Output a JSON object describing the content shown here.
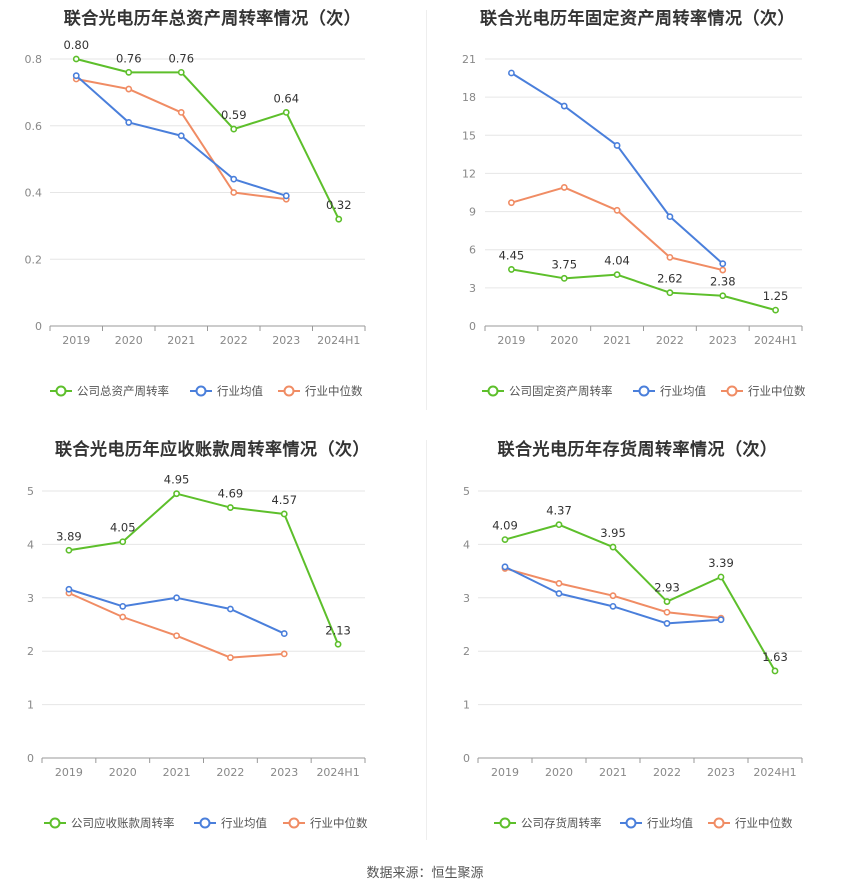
{
  "source": "数据来源：恒生聚源",
  "colors": {
    "company": "#5dbf2b",
    "avg": "#4a7fdb",
    "median": "#f08c64",
    "grid": "#e6e6e6",
    "axis": "#999999",
    "tick": "#888888"
  },
  "chart_data": [
    {
      "type": "line",
      "title": "联合光电历年总资产周转率情况（次）",
      "categories": [
        "2019",
        "2020",
        "2021",
        "2022",
        "2023",
        "2024H1"
      ],
      "ylim": [
        0,
        0.8
      ],
      "yticks": [
        "0",
        "0.2",
        "0.4",
        "0.6",
        "0.8"
      ],
      "series": [
        {
          "name": "公司总资产周转率",
          "values": [
            0.8,
            0.76,
            0.76,
            0.59,
            0.64,
            0.32
          ],
          "labels": [
            "0.80",
            "0.76",
            "0.76",
            "0.59",
            "0.64",
            "0.32"
          ]
        },
        {
          "name": "行业均值",
          "values": [
            0.75,
            0.61,
            0.57,
            0.44,
            0.39,
            null
          ]
        },
        {
          "name": "行业中位数",
          "values": [
            0.74,
            0.71,
            0.64,
            0.4,
            0.38,
            null
          ]
        }
      ]
    },
    {
      "type": "line",
      "title": "联合光电历年固定资产周转率情况（次）",
      "categories": [
        "2019",
        "2020",
        "2021",
        "2022",
        "2023",
        "2024H1"
      ],
      "ylim": [
        0,
        21
      ],
      "yticks": [
        "0",
        "3",
        "6",
        "9",
        "12",
        "15",
        "18",
        "21"
      ],
      "series": [
        {
          "name": "公司固定资产周转率",
          "values": [
            4.45,
            3.75,
            4.04,
            2.62,
            2.38,
            1.25
          ],
          "labels": [
            "4.45",
            "3.75",
            "4.04",
            "2.62",
            "2.38",
            "1.25"
          ]
        },
        {
          "name": "行业均值",
          "values": [
            19.9,
            17.3,
            14.2,
            8.6,
            4.9,
            null
          ]
        },
        {
          "name": "行业中位数",
          "values": [
            9.7,
            10.9,
            9.1,
            5.4,
            4.4,
            null
          ]
        }
      ]
    },
    {
      "type": "line",
      "title": "联合光电历年应收账款周转率情况（次）",
      "categories": [
        "2019",
        "2020",
        "2021",
        "2022",
        "2023",
        "2024H1"
      ],
      "ylim": [
        0,
        5
      ],
      "yticks": [
        "0",
        "1",
        "2",
        "3",
        "4",
        "5"
      ],
      "series": [
        {
          "name": "公司应收账款周转率",
          "values": [
            3.89,
            4.05,
            4.95,
            4.69,
            4.57,
            2.13
          ],
          "labels": [
            "3.89",
            "4.05",
            "4.95",
            "4.69",
            "4.57",
            "2.13"
          ]
        },
        {
          "name": "行业均值",
          "values": [
            3.16,
            2.84,
            3.0,
            2.79,
            2.33,
            null
          ]
        },
        {
          "name": "行业中位数",
          "values": [
            3.09,
            2.64,
            2.29,
            1.88,
            1.95,
            null
          ]
        }
      ]
    },
    {
      "type": "line",
      "title": "联合光电历年存货周转率情况（次）",
      "categories": [
        "2019",
        "2020",
        "2021",
        "2022",
        "2023",
        "2024H1"
      ],
      "ylim": [
        0,
        5
      ],
      "yticks": [
        "0",
        "1",
        "2",
        "3",
        "4",
        "5"
      ],
      "series": [
        {
          "name": "公司存货周转率",
          "values": [
            4.09,
            4.37,
            3.95,
            2.93,
            3.39,
            1.63
          ],
          "labels": [
            "4.09",
            "4.37",
            "3.95",
            "2.93",
            "3.39",
            "1.63"
          ]
        },
        {
          "name": "行业均值",
          "values": [
            3.58,
            3.08,
            2.84,
            2.52,
            2.59,
            null
          ]
        },
        {
          "name": "行业中位数",
          "values": [
            3.55,
            3.27,
            3.04,
            2.73,
            2.62,
            null
          ]
        }
      ]
    }
  ]
}
